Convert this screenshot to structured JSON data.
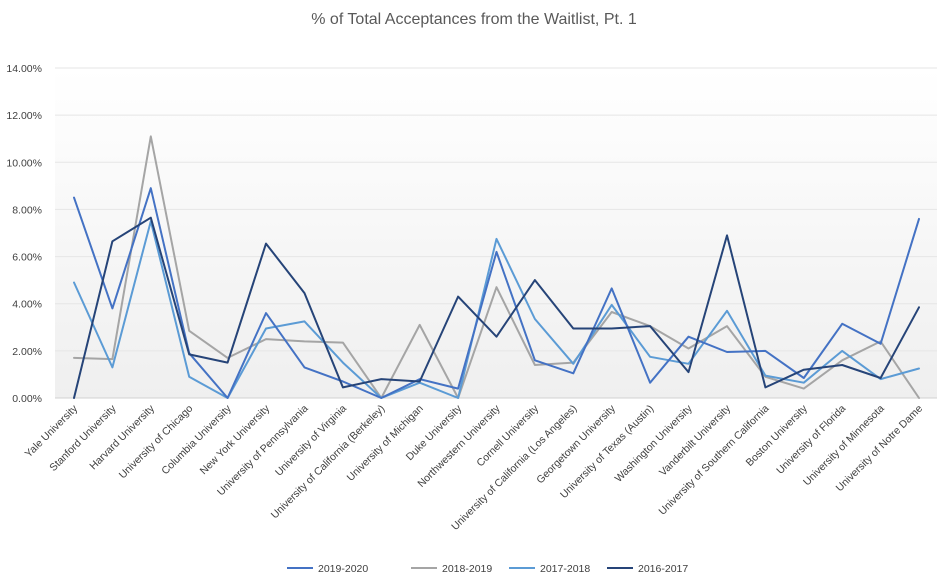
{
  "chart_data": {
    "type": "line",
    "title": "% of Total Acceptances from the Waitlist, Pt. 1",
    "xlabel": "",
    "ylabel": "",
    "ylim": [
      0,
      14
    ],
    "y_ticks": [
      "0.00%",
      "2.00%",
      "4.00%",
      "6.00%",
      "8.00%",
      "10.00%",
      "12.00%",
      "14.00%"
    ],
    "y_tick_values": [
      0,
      2,
      4,
      6,
      8,
      10,
      12,
      14
    ],
    "grid": true,
    "legend_position": "bottom",
    "categories": [
      "Yale University",
      "Stanford University",
      "Harvard University",
      "University of Chicago",
      "Columbia University",
      "New York University",
      "University of Pennsylvania",
      "University of Virginia",
      "University of California (Berkeley)",
      "University of Michigan",
      "Duke University",
      "Northwestern University",
      "Cornell University",
      "University of California (Los Angeles)",
      "Georgetown University",
      "University of Texas (Austin)",
      "Washington University",
      "Vanderbilt University",
      "University of Southern California",
      "Boston University",
      "University of Florida",
      "University of Minnesota",
      "University of Notre Dame"
    ],
    "series": [
      {
        "name": "2019-2020",
        "color": "#4472C4",
        "values": [
          8.5,
          3.8,
          8.9,
          1.9,
          0.0,
          3.6,
          1.3,
          0.7,
          0.0,
          0.8,
          0.4,
          6.2,
          1.6,
          1.05,
          4.65,
          0.65,
          2.6,
          1.95,
          2.0,
          0.85,
          3.15,
          2.3,
          7.6
        ]
      },
      {
        "name": "2018-2019",
        "color": "#A5A5A5",
        "values": [
          1.7,
          1.65,
          11.1,
          2.85,
          1.7,
          2.5,
          2.4,
          2.35,
          0.0,
          3.1,
          0.0,
          4.7,
          1.4,
          1.5,
          3.65,
          3.05,
          2.1,
          3.05,
          0.9,
          0.4,
          1.6,
          2.4,
          0.0
        ]
      },
      {
        "name": "2017-2018",
        "color": "#5B9BD5",
        "values": [
          4.9,
          1.3,
          7.5,
          0.9,
          0.0,
          2.95,
          3.25,
          1.5,
          0.0,
          0.65,
          0.0,
          6.75,
          3.35,
          1.45,
          3.95,
          1.75,
          1.45,
          3.7,
          0.95,
          0.65,
          2.0,
          0.8,
          1.25
        ]
      },
      {
        "name": "2016-2017",
        "color": "#264478",
        "values": [
          0.0,
          6.65,
          7.65,
          1.85,
          1.5,
          6.55,
          4.45,
          0.45,
          0.8,
          0.7,
          4.3,
          2.6,
          5.0,
          2.95,
          2.95,
          3.05,
          1.1,
          6.9,
          0.45,
          1.2,
          1.4,
          0.85,
          3.85
        ]
      }
    ]
  }
}
